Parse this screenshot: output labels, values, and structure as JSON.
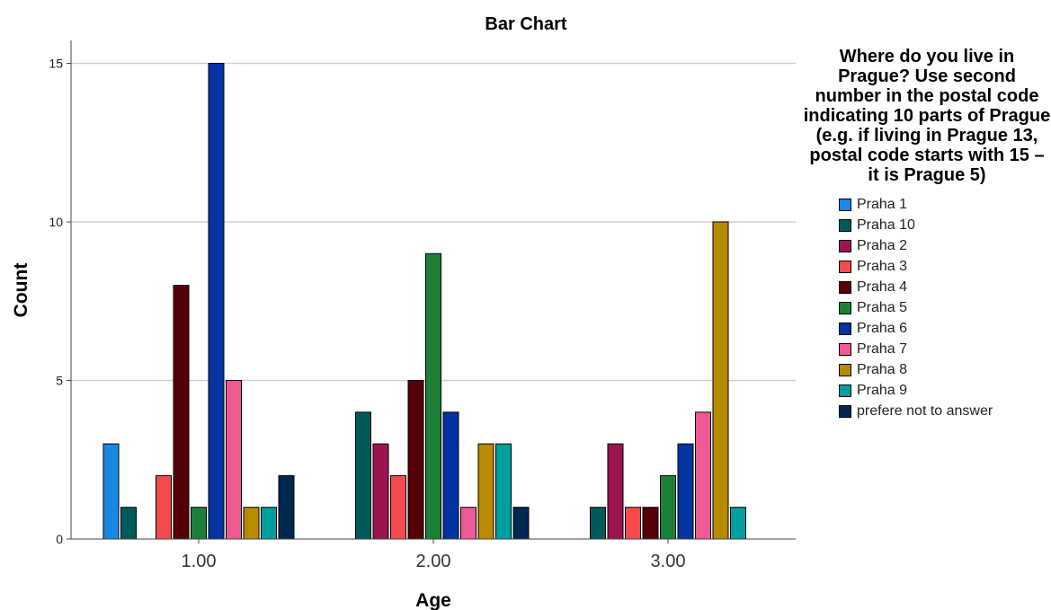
{
  "chart_data": {
    "type": "bar",
    "title": "Bar Chart",
    "xlabel": "Age",
    "ylabel": "Count",
    "categories": [
      "1.00",
      "2.00",
      "3.00"
    ],
    "ylim": [
      0,
      16
    ],
    "yticks": [
      "0",
      "5",
      "10",
      "15"
    ],
    "grid": true,
    "legend_title": "Where do you live in Prague? Use second number in the postal code indicating 10 parts of Prague (e.g. if living in Prague 13, postal code starts with 15 – it is Prague 5)",
    "legend_position": "right",
    "series": [
      {
        "name": "Praha 1",
        "color": "#1a87e3",
        "values": [
          3,
          0,
          0
        ]
      },
      {
        "name": "Praha 10",
        "color": "#005a5b",
        "values": [
          1,
          4,
          1
        ]
      },
      {
        "name": "Praha 2",
        "color": "#9a1452",
        "values": [
          0,
          3,
          3
        ]
      },
      {
        "name": "Praha 3",
        "color": "#f64b4e",
        "values": [
          2,
          2,
          1
        ]
      },
      {
        "name": "Praha 4",
        "color": "#560008",
        "values": [
          8,
          5,
          1
        ]
      },
      {
        "name": "Praha 5",
        "color": "#1c8038",
        "values": [
          1,
          9,
          2
        ]
      },
      {
        "name": "Praha 6",
        "color": "#0433a2",
        "values": [
          15,
          4,
          3
        ]
      },
      {
        "name": "Praha 7",
        "color": "#ee5a93",
        "values": [
          5,
          1,
          4
        ]
      },
      {
        "name": "Praha 8",
        "color": "#b88a00",
        "values": [
          1,
          3,
          10
        ]
      },
      {
        "name": "Praha 9",
        "color": "#009e9e",
        "values": [
          1,
          3,
          1
        ]
      },
      {
        "name": "prefere not to answer",
        "color": "#002850",
        "values": [
          2,
          1,
          0
        ]
      }
    ]
  }
}
